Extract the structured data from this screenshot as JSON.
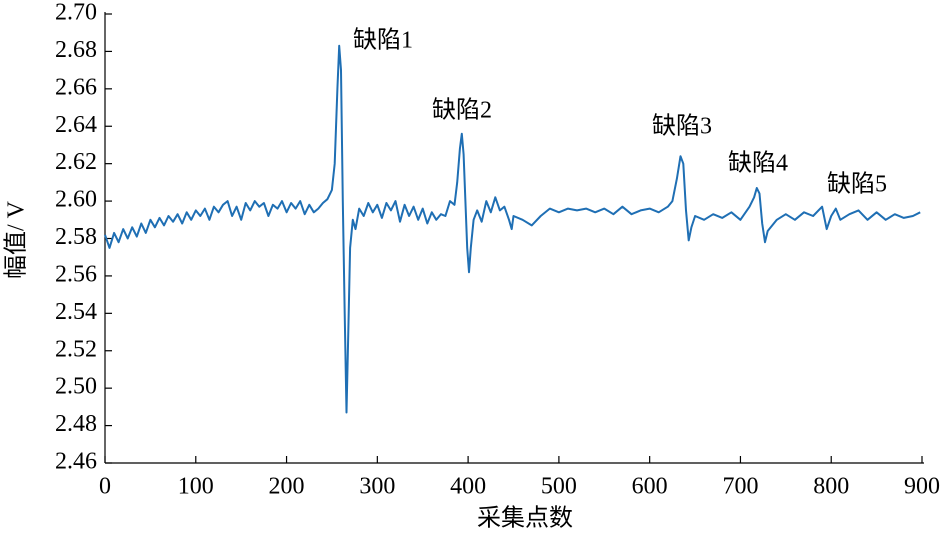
{
  "chart_data": {
    "type": "line",
    "xlabel": "采集点数",
    "ylabel": "幅值/ V",
    "annotations": [
      "缺陷1",
      "缺陷2",
      "缺陷3",
      "缺陷4",
      "缺陷5"
    ],
    "xlim": [
      0,
      900
    ],
    "xticks": [
      0,
      100,
      200,
      300,
      400,
      500,
      600,
      700,
      800,
      900
    ],
    "ylim": [
      2.46,
      2.7
    ],
    "yticks": [
      2.46,
      2.48,
      {
        "value": 2.5,
        "label": "2.50"
      },
      2.52,
      2.54,
      2.56,
      2.58,
      {
        "value": 2.6,
        "label": "2.60"
      },
      2.62,
      2.64,
      2.66,
      2.68,
      {
        "value": 2.7,
        "label": "2.70"
      }
    ],
    "series": [
      {
        "color": "#1f6fb4",
        "x": [
          0,
          5,
          10,
          15,
          20,
          25,
          30,
          35,
          40,
          45,
          50,
          55,
          60,
          65,
          70,
          75,
          80,
          85,
          90,
          95,
          100,
          105,
          110,
          115,
          120,
          125,
          130,
          135,
          140,
          145,
          150,
          155,
          160,
          165,
          170,
          175,
          180,
          185,
          190,
          195,
          200,
          205,
          210,
          215,
          220,
          225,
          230,
          235,
          240,
          245,
          250,
          253,
          256,
          258,
          260,
          262,
          264,
          266,
          268,
          270,
          273,
          276,
          280,
          285,
          290,
          295,
          300,
          305,
          310,
          315,
          320,
          325,
          330,
          335,
          340,
          345,
          350,
          355,
          360,
          365,
          370,
          375,
          380,
          385,
          388,
          391,
          393,
          395,
          397,
          399,
          401,
          403,
          406,
          410,
          415,
          420,
          425,
          430,
          435,
          440,
          445,
          448,
          450,
          460,
          470,
          480,
          490,
          500,
          510,
          520,
          530,
          540,
          550,
          560,
          570,
          580,
          590,
          600,
          610,
          620,
          625,
          630,
          634,
          637,
          640,
          643,
          646,
          650,
          660,
          670,
          680,
          690,
          700,
          710,
          715,
          718,
          721,
          724,
          727,
          730,
          740,
          750,
          760,
          770,
          780,
          790,
          795,
          800,
          805,
          810,
          820,
          830,
          840,
          850,
          860,
          870,
          880,
          890,
          898
        ],
        "values": [
          2.582,
          2.575,
          2.583,
          2.578,
          2.585,
          2.58,
          2.586,
          2.581,
          2.588,
          2.583,
          2.59,
          2.586,
          2.591,
          2.587,
          2.592,
          2.589,
          2.593,
          2.588,
          2.594,
          2.59,
          2.595,
          2.592,
          2.596,
          2.59,
          2.597,
          2.594,
          2.598,
          2.6,
          2.592,
          2.597,
          2.59,
          2.599,
          2.595,
          2.6,
          2.597,
          2.599,
          2.592,
          2.598,
          2.596,
          2.6,
          2.594,
          2.599,
          2.596,
          2.6,
          2.593,
          2.598,
          2.594,
          2.596,
          2.599,
          2.601,
          2.606,
          2.62,
          2.66,
          2.683,
          2.67,
          2.6,
          2.54,
          2.487,
          2.53,
          2.575,
          2.59,
          2.585,
          2.596,
          2.592,
          2.599,
          2.594,
          2.598,
          2.591,
          2.599,
          2.595,
          2.6,
          2.589,
          2.598,
          2.592,
          2.597,
          2.59,
          2.596,
          2.588,
          2.594,
          2.59,
          2.593,
          2.592,
          2.6,
          2.598,
          2.61,
          2.628,
          2.636,
          2.625,
          2.6,
          2.575,
          2.562,
          2.575,
          2.59,
          2.595,
          2.589,
          2.6,
          2.594,
          2.602,
          2.595,
          2.597,
          2.59,
          2.585,
          2.592,
          2.59,
          2.587,
          2.592,
          2.596,
          2.594,
          2.596,
          2.595,
          2.596,
          2.594,
          2.596,
          2.593,
          2.597,
          2.593,
          2.595,
          2.596,
          2.594,
          2.597,
          2.6,
          2.612,
          2.624,
          2.62,
          2.595,
          2.579,
          2.586,
          2.592,
          2.59,
          2.593,
          2.591,
          2.594,
          2.59,
          2.597,
          2.602,
          2.607,
          2.604,
          2.588,
          2.578,
          2.584,
          2.59,
          2.593,
          2.59,
          2.594,
          2.592,
          2.597,
          2.585,
          2.592,
          2.596,
          2.59,
          2.593,
          2.595,
          2.59,
          2.594,
          2.59,
          2.593,
          2.591,
          2.592,
          2.594
        ]
      }
    ]
  }
}
